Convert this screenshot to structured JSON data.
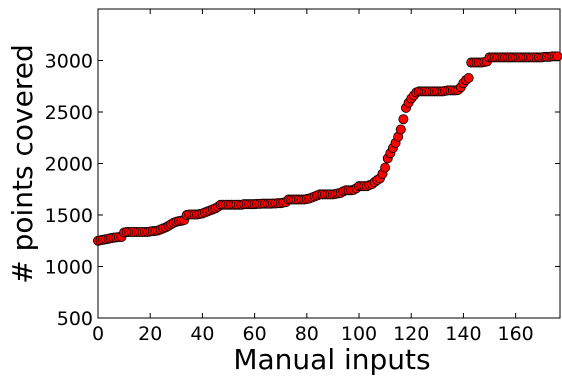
{
  "chart_data": {
    "type": "scatter",
    "title": "",
    "xlabel": "Manual inputs",
    "ylabel": "# points covered",
    "xlim": [
      0,
      177
    ],
    "ylim": [
      500,
      3500
    ],
    "xticks": [
      0,
      20,
      40,
      60,
      80,
      100,
      120,
      140,
      160
    ],
    "yticks": [
      500,
      1000,
      1500,
      2000,
      2500,
      3000
    ],
    "grid": false,
    "legend": "none",
    "marker": {
      "shape": "circle",
      "fill": "#ff0000",
      "edge": "#000000"
    },
    "series": [
      {
        "x": [
          0,
          1,
          2,
          3,
          4,
          5,
          6,
          7,
          8,
          9,
          10,
          11,
          12,
          13,
          14,
          15,
          16,
          17,
          18,
          19,
          20,
          21,
          22,
          23,
          24,
          25,
          26,
          27,
          28,
          29,
          30,
          31,
          32,
          33,
          34,
          35,
          36,
          37,
          38,
          39,
          40,
          41,
          42,
          43,
          44,
          45,
          46,
          47,
          48,
          49,
          50,
          51,
          52,
          53,
          54,
          55,
          56,
          57,
          58,
          59,
          60,
          61,
          62,
          63,
          64,
          65,
          66,
          67,
          68,
          69,
          70,
          71,
          72,
          73,
          74,
          75,
          76,
          77,
          78,
          79,
          80,
          81,
          82,
          83,
          84,
          85,
          86,
          87,
          88,
          89,
          90,
          91,
          92,
          93,
          94,
          95,
          96,
          97,
          98,
          99,
          100,
          101,
          102,
          103,
          104,
          105,
          106,
          107,
          108,
          109,
          110,
          111,
          112,
          113,
          114,
          115,
          116,
          117,
          118,
          119,
          120,
          121,
          122,
          123,
          124,
          125,
          126,
          127,
          128,
          129,
          130,
          131,
          132,
          133,
          134,
          135,
          136,
          137,
          138,
          139,
          140,
          141,
          142,
          143,
          144,
          145,
          146,
          147,
          148,
          149,
          150,
          151,
          152,
          153,
          154,
          155,
          156,
          157,
          158,
          159,
          160,
          161,
          162,
          163,
          164,
          165,
          166,
          167,
          168,
          169,
          170,
          171,
          172,
          173,
          174,
          175,
          176
        ],
        "y": [
          1250,
          1255,
          1260,
          1265,
          1270,
          1275,
          1280,
          1283,
          1285,
          1287,
          1330,
          1335,
          1335,
          1335,
          1335,
          1335,
          1335,
          1335,
          1335,
          1335,
          1340,
          1343,
          1346,
          1350,
          1360,
          1370,
          1380,
          1395,
          1410,
          1425,
          1435,
          1440,
          1445,
          1450,
          1500,
          1505,
          1505,
          1505,
          1505,
          1510,
          1515,
          1525,
          1535,
          1545,
          1555,
          1565,
          1580,
          1600,
          1600,
          1600,
          1600,
          1600,
          1600,
          1600,
          1600,
          1600,
          1605,
          1605,
          1605,
          1605,
          1605,
          1608,
          1608,
          1610,
          1610,
          1610,
          1610,
          1612,
          1612,
          1615,
          1615,
          1620,
          1625,
          1650,
          1650,
          1650,
          1650,
          1650,
          1650,
          1650,
          1655,
          1660,
          1670,
          1680,
          1690,
          1700,
          1700,
          1700,
          1700,
          1700,
          1700,
          1705,
          1710,
          1715,
          1730,
          1740,
          1740,
          1740,
          1745,
          1760,
          1780,
          1780,
          1780,
          1780,
          1790,
          1800,
          1820,
          1840,
          1855,
          1900,
          1960,
          2050,
          2100,
          2150,
          2200,
          2260,
          2330,
          2430,
          2540,
          2590,
          2630,
          2660,
          2690,
          2700,
          2700,
          2700,
          2700,
          2700,
          2700,
          2700,
          2700,
          2700,
          2700,
          2705,
          2710,
          2710,
          2710,
          2710,
          2715,
          2740,
          2780,
          2810,
          2830,
          2980,
          2980,
          2980,
          2980,
          2980,
          2985,
          2990,
          3030,
          3030,
          3030,
          3030,
          3030,
          3030,
          3030,
          3030,
          3030,
          3030,
          3030,
          3030,
          3030,
          3030,
          3030,
          3030,
          3030,
          3030,
          3030,
          3030,
          3030,
          3035,
          3035,
          3035,
          3040,
          3040,
          3040
        ]
      }
    ]
  }
}
